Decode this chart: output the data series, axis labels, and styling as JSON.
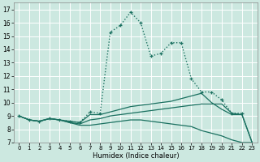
{
  "xlabel": "Humidex (Indice chaleur)",
  "background_color": "#cce8e0",
  "grid_color": "#ffffff",
  "line_color": "#1a7060",
  "xlim": [
    -0.5,
    23.5
  ],
  "ylim": [
    7,
    17.5
  ],
  "xtick_labels": [
    "0",
    "1",
    "2",
    "3",
    "4",
    "5",
    "6",
    "7",
    "8",
    "9",
    "10",
    "11",
    "12",
    "13",
    "14",
    "15",
    "16",
    "17",
    "18",
    "19",
    "20",
    "21",
    "22",
    "23"
  ],
  "ytick_labels": [
    "7",
    "8",
    "9",
    "10",
    "11",
    "12",
    "13",
    "14",
    "15",
    "16",
    "17"
  ],
  "line_dotted": {
    "x": [
      0,
      1,
      2,
      3,
      4,
      5,
      6,
      7,
      8,
      9,
      10,
      11,
      12,
      13,
      14,
      15,
      16,
      17,
      18,
      19,
      20,
      21,
      22
    ],
    "y": [
      9.0,
      8.7,
      8.6,
      8.8,
      8.7,
      8.6,
      8.5,
      9.3,
      9.2,
      15.3,
      15.8,
      16.8,
      16.0,
      13.5,
      13.7,
      14.5,
      14.5,
      11.8,
      10.8,
      10.8,
      10.2,
      9.2,
      9.2
    ]
  },
  "line_upper": {
    "x": [
      0,
      1,
      2,
      3,
      4,
      5,
      6,
      7,
      8,
      9,
      10,
      11,
      12,
      13,
      14,
      15,
      16,
      17,
      18,
      19,
      20,
      21,
      22,
      23
    ],
    "y": [
      9.0,
      8.7,
      8.6,
      8.8,
      8.7,
      8.6,
      8.5,
      9.1,
      9.1,
      9.3,
      9.5,
      9.7,
      9.8,
      9.9,
      10.0,
      10.1,
      10.3,
      10.5,
      10.7,
      10.0,
      9.5,
      9.1,
      9.1,
      7.0
    ]
  },
  "line_mid": {
    "x": [
      0,
      1,
      2,
      3,
      4,
      5,
      6,
      7,
      8,
      9,
      10,
      11,
      12,
      13,
      14,
      15,
      16,
      17,
      18,
      19,
      20,
      21,
      22,
      23
    ],
    "y": [
      9.0,
      8.7,
      8.6,
      8.8,
      8.7,
      8.5,
      8.4,
      8.7,
      8.8,
      9.0,
      9.1,
      9.2,
      9.3,
      9.4,
      9.5,
      9.6,
      9.7,
      9.8,
      9.9,
      9.9,
      9.9,
      9.2,
      9.1,
      7.0
    ]
  },
  "line_lower": {
    "x": [
      0,
      1,
      2,
      3,
      4,
      5,
      6,
      7,
      8,
      9,
      10,
      11,
      12,
      13,
      14,
      15,
      16,
      17,
      18,
      19,
      20,
      21,
      22,
      23
    ],
    "y": [
      9.0,
      8.7,
      8.6,
      8.8,
      8.7,
      8.5,
      8.3,
      8.3,
      8.4,
      8.5,
      8.6,
      8.7,
      8.7,
      8.6,
      8.5,
      8.4,
      8.3,
      8.2,
      7.9,
      7.7,
      7.5,
      7.2,
      7.0,
      7.0
    ]
  }
}
